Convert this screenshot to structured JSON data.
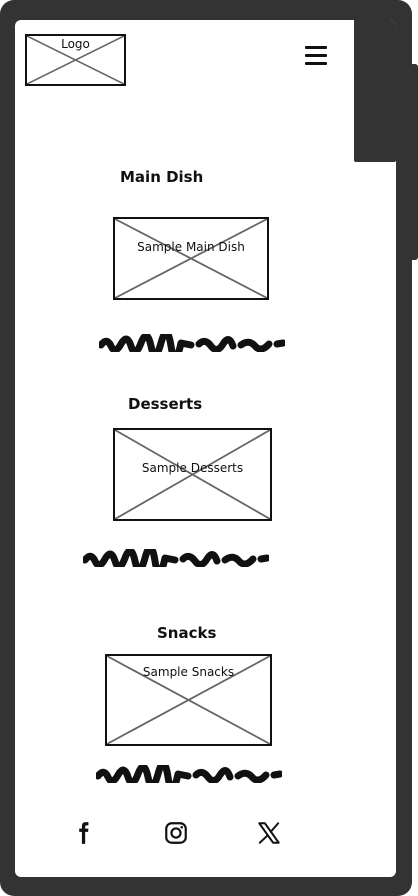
{
  "header": {
    "logo_label": "Logo",
    "menu_icon": "hamburger-menu-icon"
  },
  "sections": [
    {
      "title": "Main Dish",
      "image_label": "Sample Main Dish"
    },
    {
      "title": "Desserts",
      "image_label": "Sample Desserts"
    },
    {
      "title": "Snacks",
      "image_label": "Sample Snacks"
    }
  ],
  "footer": {
    "icons": [
      "facebook-icon",
      "instagram-icon",
      "x-icon"
    ]
  },
  "colors": {
    "frame": "#333333",
    "screen": "#ffffff",
    "ink": "#111111",
    "cross": "#666666"
  }
}
